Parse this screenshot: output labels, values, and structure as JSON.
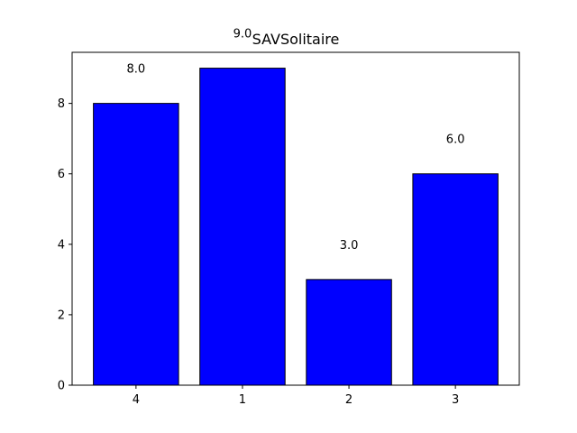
{
  "chart_data": {
    "type": "bar",
    "title": "SAVSolitaire",
    "xlabel": "",
    "ylabel": "",
    "categories": [
      "4",
      "1",
      "2",
      "3"
    ],
    "values": [
      8.0,
      9.0,
      3.0,
      6.0
    ],
    "value_labels": [
      "8.0",
      "9.0",
      "3.0",
      "6.0"
    ],
    "ylim": [
      0,
      9.45
    ],
    "yticks": [
      0,
      2,
      4,
      6,
      8
    ],
    "ytick_labels": [
      "0",
      "2",
      "4",
      "6",
      "8"
    ],
    "grid": false,
    "bar_color": "#0000ff",
    "edge_color": "#000000"
  }
}
